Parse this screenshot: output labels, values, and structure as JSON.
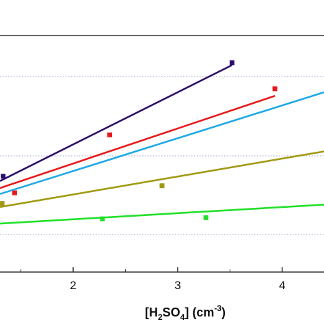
{
  "chart_data": {
    "type": "scatter",
    "xlabel": "[H2SO4] (cm-3)",
    "xlabel_parts": {
      "bracket_open": "[H",
      "sub_2": "2",
      "mid": "SO",
      "sub_4": "4",
      "close": "] (cm",
      "sup": "-3",
      "end": ")"
    },
    "x_ticks": [
      "2",
      "3",
      "4"
    ],
    "xlim": [
      1.3,
      4.4
    ],
    "ylim": [
      0,
      1
    ],
    "grid": "horizontal dotted",
    "legend": "none",
    "series": [
      {
        "color": "#2a0f6b",
        "points": [
          {
            "x": 1.33,
            "y": 0.405
          },
          {
            "x": 3.52,
            "y": 0.885
          }
        ],
        "fit": [
          {
            "x": 1.3,
            "y": 0.385
          },
          {
            "x": 3.52,
            "y": 0.875
          }
        ]
      },
      {
        "color": "#e8191c",
        "points": [
          {
            "x": 1.44,
            "y": 0.335
          },
          {
            "x": 2.35,
            "y": 0.58
          },
          {
            "x": 3.93,
            "y": 0.775
          }
        ],
        "fit": [
          {
            "x": 1.3,
            "y": 0.355
          },
          {
            "x": 3.93,
            "y": 0.745
          }
        ]
      },
      {
        "color": "#1fa9e6",
        "points": [],
        "fit": [
          {
            "x": 1.3,
            "y": 0.33
          },
          {
            "x": 4.4,
            "y": 0.76
          }
        ]
      },
      {
        "color": "#a09a12",
        "points": [
          {
            "x": 1.32,
            "y": 0.29
          },
          {
            "x": 2.85,
            "y": 0.365
          }
        ],
        "fit": [
          {
            "x": 1.3,
            "y": 0.275
          },
          {
            "x": 4.4,
            "y": 0.51
          }
        ]
      },
      {
        "color": "#22e02a",
        "points": [
          {
            "x": 2.28,
            "y": 0.225
          },
          {
            "x": 3.27,
            "y": 0.23
          }
        ],
        "fit": [
          {
            "x": 1.3,
            "y": 0.205
          },
          {
            "x": 4.4,
            "y": 0.285
          }
        ]
      }
    ]
  }
}
